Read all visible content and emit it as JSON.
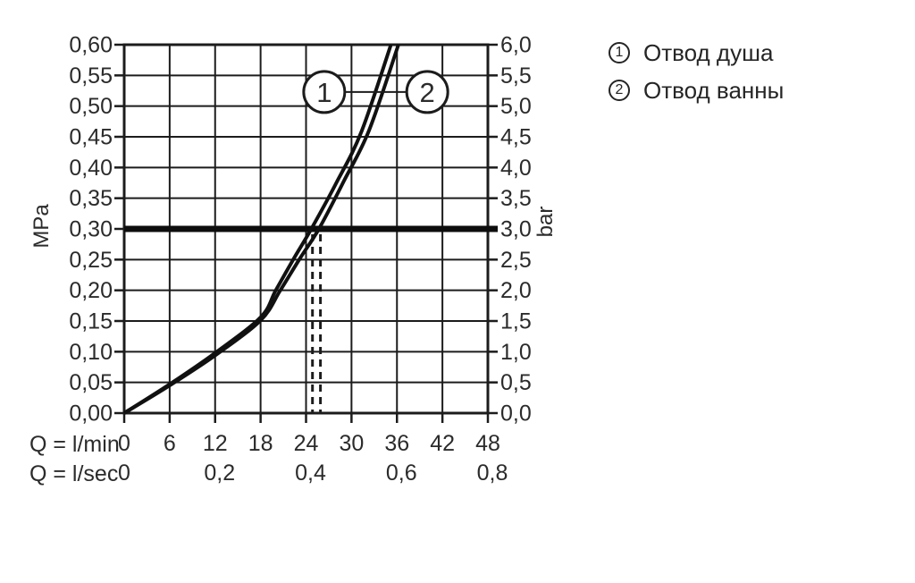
{
  "colors": {
    "background": "#ffffff",
    "grid_line": "#1c1c1c",
    "curve": "#111111",
    "reference_line": "#0d0d0d",
    "text": "#2b2b2b"
  },
  "legend": {
    "items": [
      {
        "marker": "1",
        "label": "Отвод душа"
      },
      {
        "marker": "2",
        "label": "Отвод ванны"
      }
    ]
  },
  "chart_data": {
    "type": "line",
    "title": "",
    "grid": true,
    "left_axis": {
      "unit": "MPa",
      "min": 0,
      "max": 0.6,
      "step": 0.05,
      "tick_labels": [
        "0,60",
        "0,55",
        "0,50",
        "0,45",
        "0,40",
        "0,35",
        "0,30",
        "0,25",
        "0,20",
        "0,15",
        "0,10",
        "0,05",
        "0,00"
      ]
    },
    "right_axis": {
      "unit": "bar",
      "min": 0,
      "max": 6.0,
      "step": 0.5,
      "tick_labels": [
        "6,0",
        "5,5",
        "5,0",
        "4,5",
        "4,0",
        "3,5",
        "3,0",
        "2,5",
        "2,0",
        "1,5",
        "1,0",
        "0,5",
        "0,0"
      ]
    },
    "x_axis_primary": {
      "label": "Q = l/min",
      "min": 0,
      "max": 48,
      "step": 6,
      "tick_labels": [
        "0",
        "6",
        "12",
        "18",
        "24",
        "30",
        "36",
        "42",
        "48"
      ]
    },
    "x_axis_secondary": {
      "label": "Q = l/sec",
      "ticks": [
        {
          "label": "0",
          "q_lmin": 0
        },
        {
          "label": "0,2",
          "q_lmin": 12
        },
        {
          "label": "0,4",
          "q_lmin": 24
        },
        {
          "label": "0,6",
          "q_lmin": 36
        },
        {
          "label": "0,8",
          "q_lmin": 48
        }
      ]
    },
    "reference_line": {
      "mpa": 0.3,
      "bar": 3.0
    },
    "dashed_guides_q_lmin": [
      24.85,
      25.9
    ],
    "series": [
      {
        "id": "1",
        "name": "Отвод душа",
        "points_q_mpa": [
          [
            0,
            0
          ],
          [
            6,
            0.047
          ],
          [
            12,
            0.098
          ],
          [
            18,
            0.156
          ],
          [
            20,
            0.2
          ],
          [
            22.4,
            0.252
          ],
          [
            24.7,
            0.3
          ],
          [
            28,
            0.375
          ],
          [
            31.3,
            0.458
          ],
          [
            35.2,
            0.6
          ]
        ]
      },
      {
        "id": "2",
        "name": "Отвод ванны",
        "points_q_mpa": [
          [
            0,
            0
          ],
          [
            6,
            0.045
          ],
          [
            12,
            0.094
          ],
          [
            18,
            0.151
          ],
          [
            20.6,
            0.2
          ],
          [
            23.2,
            0.252
          ],
          [
            25.7,
            0.3
          ],
          [
            29,
            0.378
          ],
          [
            32.3,
            0.46
          ],
          [
            36.2,
            0.6
          ]
        ]
      }
    ],
    "callouts": [
      {
        "marker": "1",
        "q_lmin": 26.4,
        "mpa": 0.523
      },
      {
        "marker": "2",
        "q_lmin": 40.0,
        "mpa": 0.523
      }
    ]
  }
}
